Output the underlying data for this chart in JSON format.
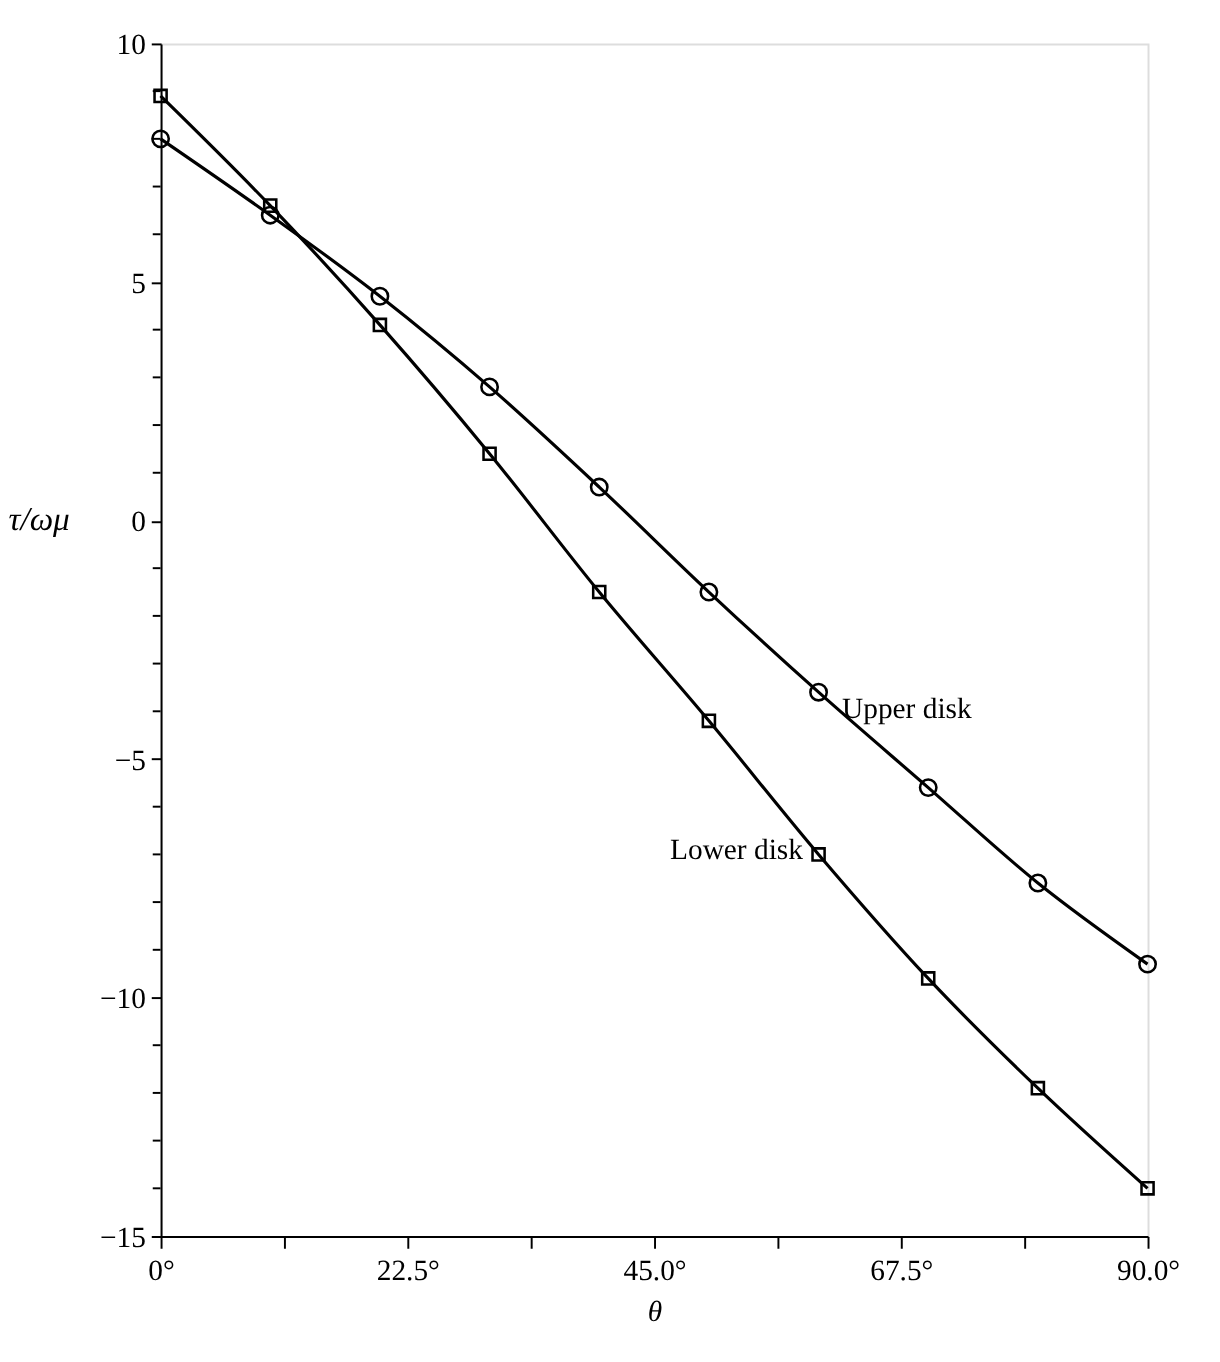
{
  "chart_data": {
    "type": "line",
    "xlabel": "θ",
    "ylabel": "τ/ωμ",
    "x": [
      0,
      10,
      20,
      30,
      40,
      50,
      60,
      70,
      80,
      90
    ],
    "series": [
      {
        "name": "Upper disk",
        "color": "#000000",
        "marker": "circle",
        "values": [
          8.0,
          6.4,
          4.7,
          2.8,
          0.7,
          -1.5,
          -3.6,
          -5.6,
          -7.6,
          -9.3
        ]
      },
      {
        "name": "Lower disk",
        "color": "#000000",
        "marker": "square",
        "values": [
          8.9,
          6.6,
          4.1,
          1.4,
          -1.5,
          -4.2,
          -7.0,
          -9.6,
          -11.9,
          -14.0
        ]
      }
    ],
    "xlim": [
      0,
      90
    ],
    "xticks": [
      {
        "value": 0,
        "label": "0°"
      },
      {
        "value": 11.25,
        "label": null
      },
      {
        "value": 22.5,
        "label": "22.5°"
      },
      {
        "value": 33.75,
        "label": null
      },
      {
        "value": 45,
        "label": "45.0°"
      },
      {
        "value": 56.25,
        "label": null
      },
      {
        "value": 67.5,
        "label": "67.5°"
      },
      {
        "value": 78.75,
        "label": null
      },
      {
        "value": 90,
        "label": "90.0°"
      }
    ],
    "ylim": [
      -15,
      10
    ],
    "yticks": [
      -15,
      {
        "value": -14,
        "label": null
      },
      {
        "value": -13,
        "label": null
      },
      {
        "value": -12,
        "label": null
      },
      {
        "value": -11,
        "label": null
      },
      -10,
      {
        "value": -9,
        "label": null
      },
      {
        "value": -8,
        "label": null
      },
      {
        "value": -7,
        "label": null
      },
      {
        "value": -6,
        "label": null
      },
      -5,
      {
        "value": -4,
        "label": null
      },
      {
        "value": -3,
        "label": null
      },
      {
        "value": -2,
        "label": null
      },
      {
        "value": -1,
        "label": null
      },
      0,
      {
        "value": 1,
        "label": null
      },
      {
        "value": 2,
        "label": null
      },
      {
        "value": 3,
        "label": null
      },
      {
        "value": 4,
        "label": null
      },
      5,
      {
        "value": 6,
        "label": null
      },
      {
        "value": 7,
        "label": null
      },
      {
        "value": 8,
        "label": null
      },
      {
        "value": 9,
        "label": null
      },
      10
    ],
    "grid": false,
    "line_style": "solid"
  }
}
